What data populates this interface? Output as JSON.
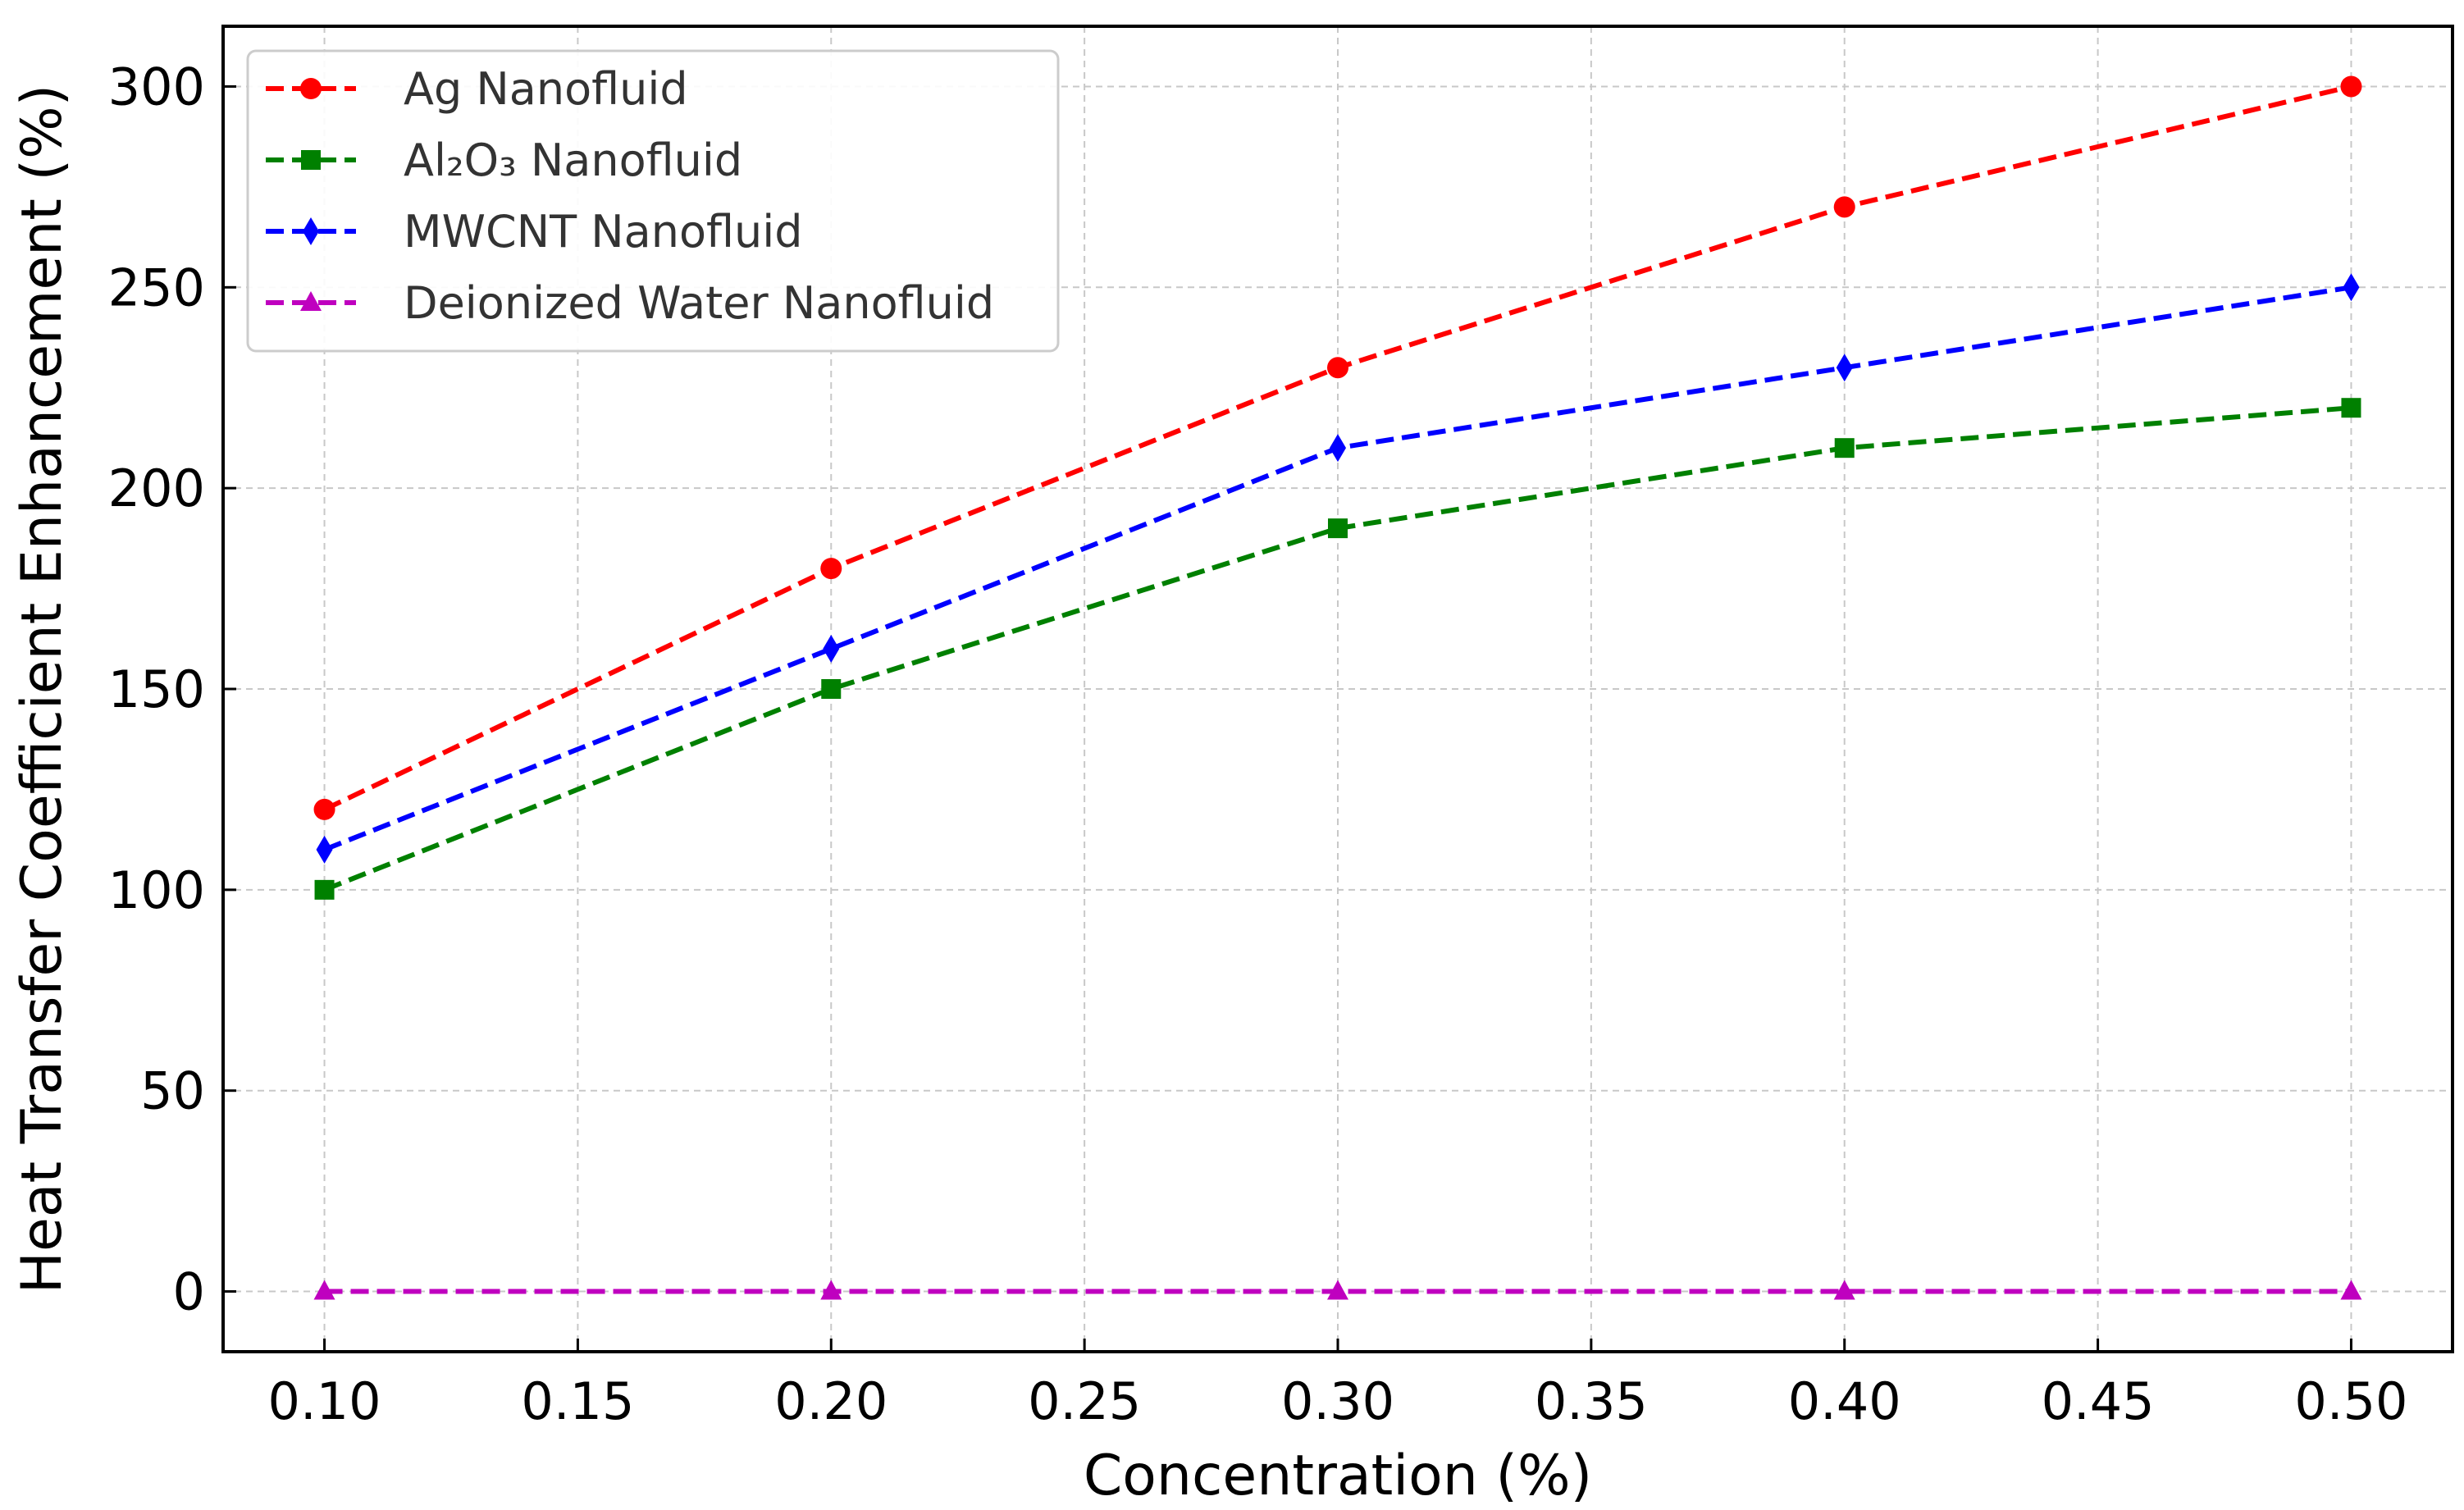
{
  "chart_data": {
    "type": "line",
    "title": "",
    "xlabel": "Concentration (%)",
    "ylabel": "Heat Transfer Coefficient Enhancement (%)",
    "x": [
      0.1,
      0.2,
      0.3,
      0.4,
      0.5
    ],
    "xlim": [
      0.08,
      0.52
    ],
    "ylim": [
      -15,
      315
    ],
    "xticks": [
      0.1,
      0.15,
      0.2,
      0.25,
      0.3,
      0.35,
      0.4,
      0.45,
      0.5
    ],
    "xtick_labels": [
      "0.10",
      "0.15",
      "0.20",
      "0.25",
      "0.30",
      "0.35",
      "0.40",
      "0.45",
      "0.50"
    ],
    "yticks": [
      0,
      50,
      100,
      150,
      200,
      250,
      300
    ],
    "ytick_labels": [
      "0",
      "50",
      "100",
      "150",
      "200",
      "250",
      "300"
    ],
    "grid": true,
    "legend_position": "top-left",
    "series": [
      {
        "name": "Ag Nanofluid",
        "values": [
          120,
          180,
          230,
          270,
          300
        ],
        "color": "#ff0000",
        "marker": "circle"
      },
      {
        "name": "Al₂O₃ Nanofluid",
        "values": [
          100,
          150,
          190,
          210,
          220
        ],
        "color": "#008000",
        "marker": "square"
      },
      {
        "name": "MWCNT Nanofluid",
        "values": [
          110,
          160,
          210,
          230,
          250
        ],
        "color": "#0000ff",
        "marker": "diamond"
      },
      {
        "name": "Deionized Water Nanofluid",
        "values": [
          0,
          0,
          0,
          0,
          0
        ],
        "color": "#bf00bf",
        "marker": "triangle"
      }
    ]
  }
}
